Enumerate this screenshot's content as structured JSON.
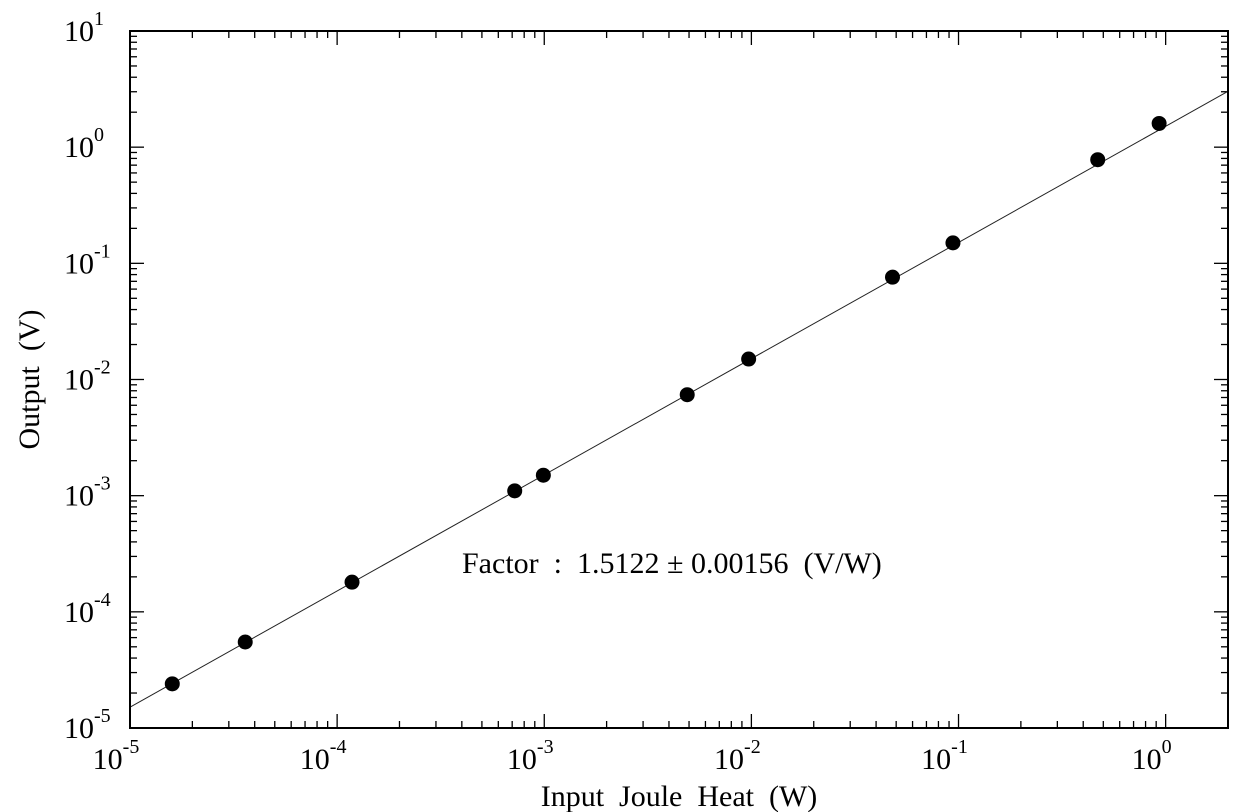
{
  "chart_data": {
    "type": "scatter",
    "xlabel": "Input  Joule  Heat  (W)",
    "ylabel": "Output  (V)",
    "xscale": "log",
    "yscale": "log",
    "xlim": [
      1e-05,
      2
    ],
    "ylim": [
      1e-05,
      10
    ],
    "x_ticks": [
      {
        "base": "10",
        "exp": "-5"
      },
      {
        "base": "10",
        "exp": "-4"
      },
      {
        "base": "10",
        "exp": "-3"
      },
      {
        "base": "10",
        "exp": "-2"
      },
      {
        "base": "10",
        "exp": "-1"
      },
      {
        "base": "10",
        "exp": "0"
      }
    ],
    "y_ticks": [
      {
        "base": "10",
        "exp": "-5"
      },
      {
        "base": "10",
        "exp": "-4"
      },
      {
        "base": "10",
        "exp": "-3"
      },
      {
        "base": "10",
        "exp": "-2"
      },
      {
        "base": "10",
        "exp": "-1"
      },
      {
        "base": "10",
        "exp": "0"
      },
      {
        "base": "10",
        "exp": "1"
      }
    ],
    "points": {
      "x": [
        1.6e-05,
        3.6e-05,
        0.000118,
        0.00072,
        0.00099,
        0.0049,
        0.0097,
        0.048,
        0.094,
        0.47,
        0.93
      ],
      "y": [
        2.4e-05,
        5.5e-05,
        0.00018,
        0.0011,
        0.0015,
        0.0074,
        0.015,
        0.076,
        0.15,
        0.78,
        1.6
      ]
    },
    "fit_line": {
      "factor": 1.5122,
      "x_range": [
        1e-05,
        2
      ]
    },
    "annotation": "Factor  :  1.5122 ± 0.00156  (V/W)"
  }
}
